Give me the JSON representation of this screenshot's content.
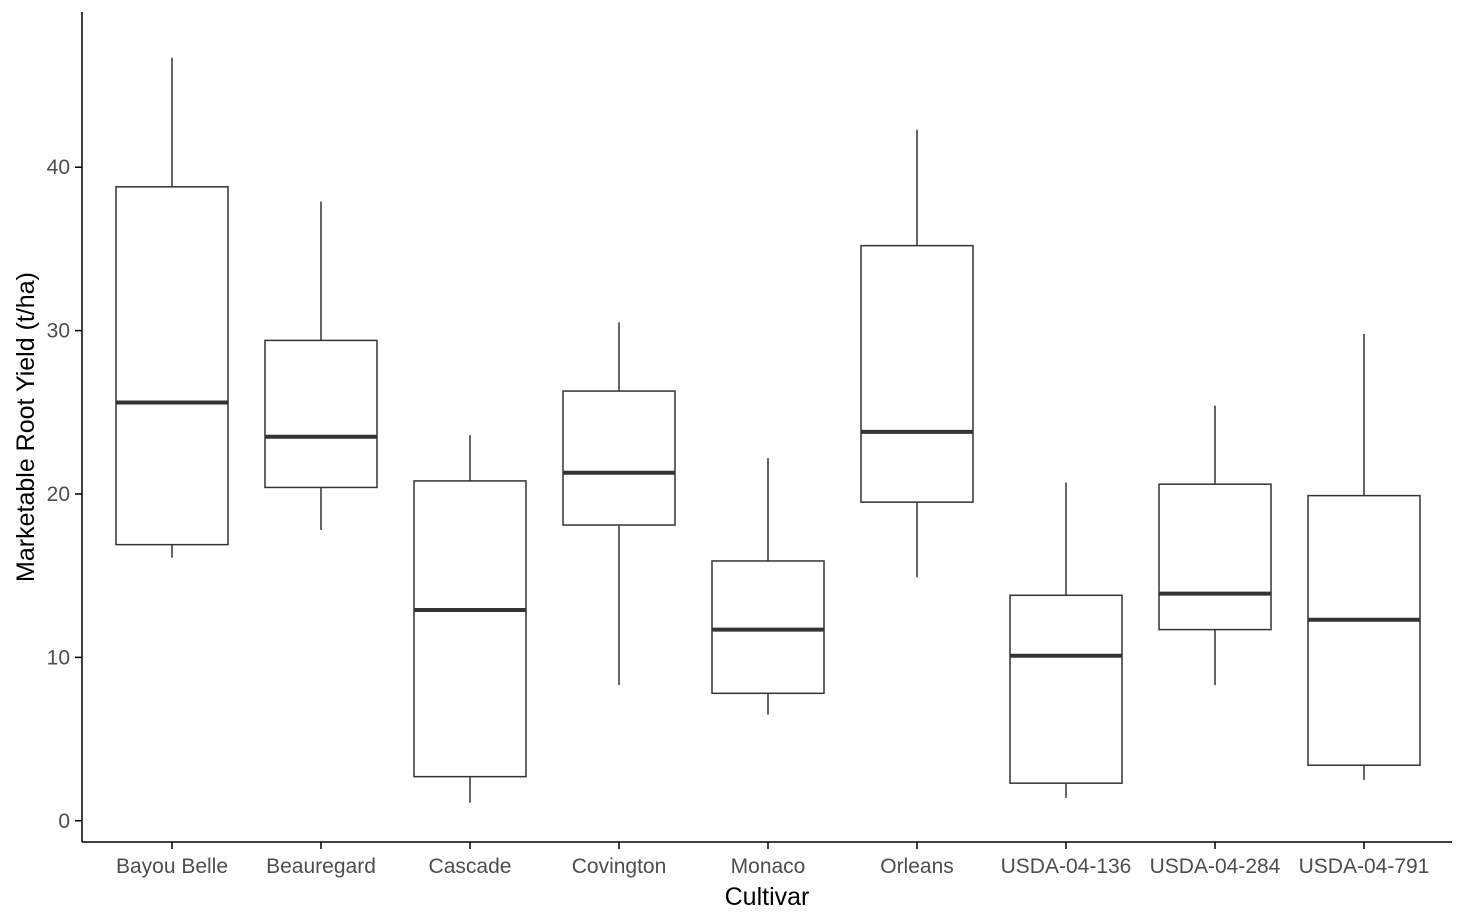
{
  "chart_data": {
    "type": "boxplot",
    "title": "",
    "xlabel": "Cultivar",
    "ylabel": "Marketable Root Yield (t/ha)",
    "ylim": [
      -1.3,
      49.5
    ],
    "yticks": [
      0,
      10,
      20,
      30,
      40
    ],
    "grid": false,
    "legend": "none",
    "categories": [
      "Bayou Belle",
      "Beauregard",
      "Cascade",
      "Covington",
      "Monaco",
      "Orleans",
      "USDA-04-136",
      "USDA-04-284",
      "USDA-04-791"
    ],
    "boxes": [
      {
        "min": 16.1,
        "q1": 16.9,
        "median": 25.6,
        "q3": 38.8,
        "max": 46.7
      },
      {
        "min": 17.8,
        "q1": 20.4,
        "median": 23.5,
        "q3": 29.4,
        "max": 37.9
      },
      {
        "min": 1.1,
        "q1": 2.7,
        "median": 12.9,
        "q3": 20.8,
        "max": 23.6
      },
      {
        "min": 8.3,
        "q1": 18.1,
        "median": 21.3,
        "q3": 26.3,
        "max": 30.5
      },
      {
        "min": 6.5,
        "q1": 7.8,
        "median": 11.7,
        "q3": 15.9,
        "max": 22.2
      },
      {
        "min": 14.9,
        "q1": 19.5,
        "median": 23.8,
        "q3": 35.2,
        "max": 42.3
      },
      {
        "min": 1.4,
        "q1": 2.3,
        "median": 10.1,
        "q3": 13.8,
        "max": 20.7
      },
      {
        "min": 8.3,
        "q1": 11.7,
        "median": 13.9,
        "q3": 20.6,
        "max": 25.4
      },
      {
        "min": 2.5,
        "q1": 3.4,
        "median": 12.3,
        "q3": 19.9,
        "max": 29.8
      }
    ],
    "colors": {
      "box_stroke": "#333333",
      "box_fill": "#ffffff",
      "axis": "#000000",
      "tick_label": "#4d4d4d",
      "title": "#000000"
    }
  }
}
